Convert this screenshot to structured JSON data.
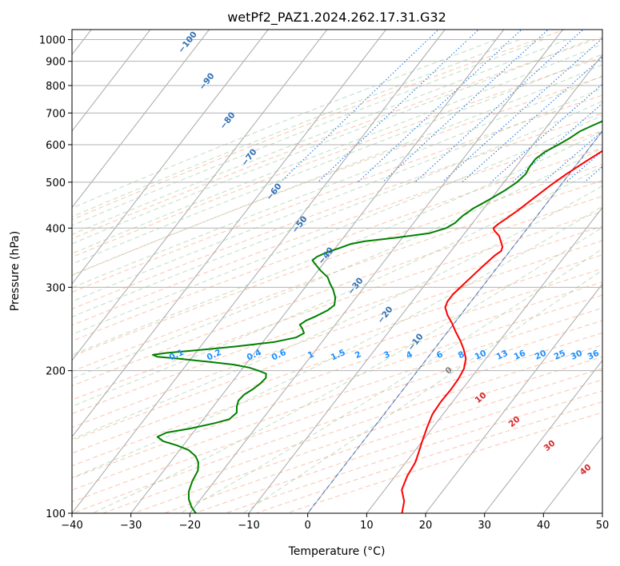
{
  "chart_data": {
    "type": "line",
    "subtype": "skew-t log-p",
    "title": "wetPf2_PAZ1.2024.262.17.31.G32",
    "xlabel": "Temperature (°C)",
    "ylabel": "Pressure (hPa)",
    "xlim": [
      -40,
      50
    ],
    "ylim": [
      1050,
      100
    ],
    "y_scale": "log",
    "grid": true,
    "xticks": [
      -40,
      -30,
      -20,
      -10,
      0,
      10,
      20,
      30,
      40,
      50
    ],
    "xtick_labels": [
      "−40",
      "−30",
      "−20",
      "−10",
      "0",
      "10",
      "20",
      "30",
      "40",
      "50"
    ],
    "yticks": [
      100,
      200,
      300,
      400,
      500,
      600,
      700,
      800,
      900,
      1000
    ],
    "ytick_labels": [
      "100",
      "200",
      "300",
      "400",
      "500",
      "600",
      "700",
      "800",
      "900",
      "1000"
    ],
    "series": [
      {
        "role": "temperature",
        "color": "#ff0000",
        "points": [
          [
            14.0,
            965
          ],
          [
            13.0,
            950
          ],
          [
            12.0,
            920
          ],
          [
            11.5,
            900
          ],
          [
            10.5,
            870
          ],
          [
            9.8,
            840
          ],
          [
            9.0,
            810
          ],
          [
            8.2,
            780
          ],
          [
            7.5,
            750
          ],
          [
            6.8,
            720
          ],
          [
            6.3,
            700
          ],
          [
            5.5,
            670
          ],
          [
            4.7,
            640
          ],
          [
            3.7,
            610
          ],
          [
            2.5,
            580
          ],
          [
            1.0,
            550
          ],
          [
            -0.5,
            520
          ],
          [
            -1.8,
            490
          ],
          [
            -3.0,
            460
          ],
          [
            -4.0,
            435
          ],
          [
            -4.8,
            420
          ],
          [
            -5.5,
            408
          ],
          [
            -5.8,
            400
          ],
          [
            -5.3,
            395
          ],
          [
            -3.8,
            385
          ],
          [
            -2.5,
            372
          ],
          [
            -1.8,
            365
          ],
          [
            -1.5,
            358
          ],
          [
            -2.0,
            350
          ],
          [
            -2.5,
            335
          ],
          [
            -3.0,
            320
          ],
          [
            -3.5,
            305
          ],
          [
            -4.0,
            290
          ],
          [
            -4.0,
            280
          ],
          [
            -3.6,
            272
          ],
          [
            -2.2,
            262
          ],
          [
            -0.4,
            252
          ],
          [
            1.3,
            242
          ],
          [
            3.2,
            232
          ],
          [
            5.0,
            222
          ],
          [
            6.6,
            212
          ],
          [
            7.6,
            202
          ],
          [
            8.0,
            192
          ],
          [
            8.1,
            182
          ],
          [
            8.0,
            172
          ],
          [
            8.2,
            162
          ],
          [
            9.0,
            152
          ],
          [
            10.0,
            142
          ],
          [
            10.8,
            135
          ],
          [
            11.6,
            128
          ],
          [
            12.0,
            120
          ],
          [
            12.9,
            112
          ],
          [
            14.8,
            106
          ],
          [
            16.0,
            100
          ]
        ]
      },
      {
        "role": "dewpoint",
        "color": "#008000",
        "points": [
          [
            10.0,
            965
          ],
          [
            9.7,
            950
          ],
          [
            9.0,
            925
          ],
          [
            8.0,
            900
          ],
          [
            6.8,
            875
          ],
          [
            5.8,
            850
          ],
          [
            5.5,
            825
          ],
          [
            4.5,
            800
          ],
          [
            3.5,
            780
          ],
          [
            2.8,
            760
          ],
          [
            2.2,
            740
          ],
          [
            1.6,
            720
          ],
          [
            0.8,
            700
          ],
          [
            -0.7,
            680
          ],
          [
            -2.3,
            660
          ],
          [
            -3.8,
            640
          ],
          [
            -4.6,
            620
          ],
          [
            -5.7,
            600
          ],
          [
            -7.0,
            580
          ],
          [
            -7.7,
            560
          ],
          [
            -7.7,
            540
          ],
          [
            -7.4,
            520
          ],
          [
            -7.8,
            500
          ],
          [
            -8.8,
            480
          ],
          [
            -10.2,
            460
          ],
          [
            -11.8,
            440
          ],
          [
            -12.6,
            425
          ],
          [
            -13.0,
            410
          ],
          [
            -13.8,
            400
          ],
          [
            -16.0,
            390
          ],
          [
            -21.0,
            382
          ],
          [
            -26.0,
            375
          ],
          [
            -28.0,
            370
          ],
          [
            -29.3,
            363
          ],
          [
            -31.0,
            355
          ],
          [
            -32.0,
            348
          ],
          [
            -32.3,
            342
          ],
          [
            -31.2,
            335
          ],
          [
            -29.5,
            325
          ],
          [
            -27.5,
            315
          ],
          [
            -26.2,
            305
          ],
          [
            -25.0,
            297
          ],
          [
            -23.5,
            285
          ],
          [
            -22.7,
            275
          ],
          [
            -23.2,
            268
          ],
          [
            -24.5,
            260
          ],
          [
            -25.5,
            255
          ],
          [
            -26.0,
            250
          ],
          [
            -25.0,
            245
          ],
          [
            -24.2,
            240
          ],
          [
            -25.0,
            235
          ],
          [
            -28.0,
            230
          ],
          [
            -34.0,
            225
          ],
          [
            -40.0,
            221
          ],
          [
            -45.0,
            218
          ],
          [
            -47.0,
            216
          ],
          [
            -46.0,
            214
          ],
          [
            -42.0,
            212
          ],
          [
            -37.0,
            209
          ],
          [
            -32.0,
            206
          ],
          [
            -29.0,
            203
          ],
          [
            -27.0,
            200
          ],
          [
            -25.3,
            197
          ],
          [
            -24.8,
            193
          ],
          [
            -25.0,
            188
          ],
          [
            -25.5,
            183
          ],
          [
            -26.3,
            178
          ],
          [
            -26.5,
            173
          ],
          [
            -26.0,
            168
          ],
          [
            -25.2,
            163
          ],
          [
            -25.6,
            158
          ],
          [
            -27.5,
            155
          ],
          [
            -31.0,
            151
          ],
          [
            -34.5,
            148
          ],
          [
            -35.5,
            145
          ],
          [
            -34.0,
            142
          ],
          [
            -31.0,
            139
          ],
          [
            -28.5,
            136
          ],
          [
            -26.5,
            132
          ],
          [
            -25.2,
            128
          ],
          [
            -24.2,
            123
          ],
          [
            -23.8,
            117
          ],
          [
            -23.0,
            111
          ],
          [
            -22.0,
            107
          ],
          [
            -20.5,
            103
          ],
          [
            -19.0,
            100
          ]
        ]
      }
    ],
    "isotherm_labels": [
      "−100",
      "−90",
      "−80",
      "−70",
      "−60",
      "−50",
      "−40",
      "−30",
      "−20",
      "−10"
    ],
    "mixing_ratio_labels": [
      "0.1",
      "0.2",
      "0.4",
      "0.6",
      "1",
      "1.5",
      "2",
      "3",
      "4",
      "6",
      "8",
      "10",
      "13",
      "16",
      "20",
      "25",
      "30",
      "36"
    ],
    "moist_adiabat_labels": [
      "0",
      "10",
      "20",
      "30",
      "40"
    ]
  }
}
